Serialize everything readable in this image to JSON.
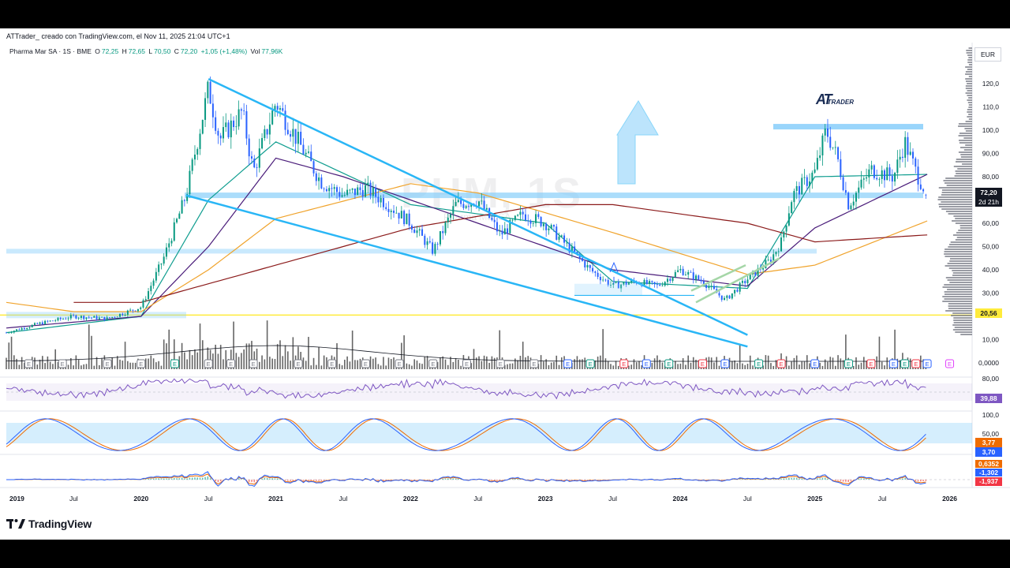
{
  "header": {
    "credit": "ATTrader_ creado con TradingView.com, el Nov 11, 2025 21:04 UTC+1"
  },
  "legend": {
    "symbol": "Pharma Mar SA · 1S · BME",
    "open_label": "O",
    "open": "72,25",
    "high_label": "H",
    "high": "72,65",
    "low_label": "L",
    "low": "70,50",
    "close_label": "C",
    "close": "72,20",
    "change": "+1,05 (+1,48%)",
    "vol_label": "Vol",
    "vol": "77,96K"
  },
  "watermark": {
    "symbol": "PHM, 1S",
    "name": "Pharma Mar SA"
  },
  "brand": {
    "logo_main": "AT",
    "logo_sub": "TRADER",
    "tradingview": "TradingView"
  },
  "price_axis": {
    "currency": "EUR",
    "ticks": [
      "120,0",
      "110,0",
      "100,0",
      "90,00",
      "80,00",
      "70,00",
      "60,00",
      "50,00",
      "40,00",
      "30,00",
      "20,00",
      "10,00",
      "0,0000"
    ],
    "current_price": "72,20",
    "countdown": "2d 21h",
    "support_label": "20,56"
  },
  "rsi_axis": {
    "ticks": [
      "80,00"
    ],
    "value": "39,88"
  },
  "stoch_axis": {
    "ticks": [
      "100,0",
      "50,00"
    ],
    "k": "3,77",
    "d": "3,70"
  },
  "macd_axis": {
    "values": [
      "0,6352",
      "-1,302",
      "-1,937"
    ]
  },
  "time_axis": {
    "labels": [
      "2019",
      "Jul",
      "2020",
      "Jul",
      "2021",
      "Jul",
      "2022",
      "Jul",
      "2023",
      "Jul",
      "2024",
      "Jul",
      "2025",
      "Jul",
      "2026"
    ]
  },
  "colors": {
    "up": "#089981",
    "down": "#2962ff",
    "trendline": "#29b6f6",
    "zone": "#87cefa",
    "ema_fast": "#0f9d8f",
    "ema_mid": "#4a1c7a",
    "ema_slow": "#f0a32b",
    "ema_long": "#8b1a1a",
    "support": "#ffeb3b",
    "rsi": "#7e57c2",
    "stoch_k": "#2962ff",
    "stoch_d": "#ef6c00",
    "earnings_green": "#089981",
    "earnings_red": "#f23645",
    "earnings_blue": "#2962ff"
  },
  "chart_data": {
    "type": "candlestick",
    "symbol": "Pharma Mar SA",
    "interval": "1S",
    "exchange": "BME",
    "currency": "EUR",
    "x_range": [
      "2019-01",
      "2026-03"
    ],
    "ylim": [
      0,
      130
    ],
    "price_path": [
      [
        "2019-01",
        13
      ],
      [
        "2019-04",
        17
      ],
      [
        "2019-07",
        20
      ],
      [
        "2019-10",
        19
      ],
      [
        "2020-01",
        24
      ],
      [
        "2020-03",
        45
      ],
      [
        "2020-05",
        72
      ],
      [
        "2020-07",
        118
      ],
      [
        "2020-08",
        96
      ],
      [
        "2020-10",
        108
      ],
      [
        "2020-11",
        82
      ],
      [
        "2021-01",
        112
      ],
      [
        "2021-03",
        95
      ],
      [
        "2021-05",
        78
      ],
      [
        "2021-07",
        72
      ],
      [
        "2021-09",
        75
      ],
      [
        "2021-11",
        68
      ],
      [
        "2022-01",
        60
      ],
      [
        "2022-03",
        48
      ],
      [
        "2022-05",
        68
      ],
      [
        "2022-07",
        70
      ],
      [
        "2022-09",
        55
      ],
      [
        "2022-11",
        64
      ],
      [
        "2023-01",
        60
      ],
      [
        "2023-03",
        50
      ],
      [
        "2023-05",
        40
      ],
      [
        "2023-07",
        33
      ],
      [
        "2023-09",
        35
      ],
      [
        "2023-11",
        33
      ],
      [
        "2024-01",
        40
      ],
      [
        "2024-03",
        35
      ],
      [
        "2024-05",
        27
      ],
      [
        "2024-07",
        36
      ],
      [
        "2024-09",
        44
      ],
      [
        "2024-10",
        52
      ],
      [
        "2024-11",
        72
      ],
      [
        "2025-01",
        82
      ],
      [
        "2025-02",
        100
      ],
      [
        "2025-03",
        88
      ],
      [
        "2025-04",
        68
      ],
      [
        "2025-06",
        83
      ],
      [
        "2025-08",
        80
      ],
      [
        "2025-09",
        95
      ],
      [
        "2025-10",
        82
      ],
      [
        "2025-11",
        72.2
      ]
    ],
    "last_bar": {
      "open": 72.25,
      "high": 72.65,
      "low": 70.5,
      "close": 72.2,
      "change": 1.05,
      "change_pct": 1.48,
      "volume": "77,96K"
    },
    "moving_averages": [
      {
        "path": [
          [
            "2019-01",
            13
          ],
          [
            "2020-01",
            20
          ],
          [
            "2020-07",
            70
          ],
          [
            "2021-01",
            95
          ],
          [
            "2022-01",
            68
          ],
          [
            "2023-01",
            60
          ],
          [
            "2023-07",
            35
          ],
          [
            "2024-07",
            32
          ],
          [
            "2025-01",
            80
          ],
          [
            "2025-11",
            81
          ]
        ]
      },
      {
        "path": [
          [
            "2019-01",
            15
          ],
          [
            "2020-01",
            20
          ],
          [
            "2020-07",
            50
          ],
          [
            "2021-01",
            88
          ],
          [
            "2021-07",
            80
          ],
          [
            "2022-07",
            60
          ],
          [
            "2023-07",
            40
          ],
          [
            "2024-07",
            33
          ],
          [
            "2025-01",
            58
          ],
          [
            "2025-11",
            81
          ]
        ]
      },
      {
        "path": [
          [
            "2019-01",
            26
          ],
          [
            "2019-07",
            22
          ],
          [
            "2020-01",
            22
          ],
          [
            "2020-07",
            40
          ],
          [
            "2021-01",
            62
          ],
          [
            "2022-01",
            77
          ],
          [
            "2022-07",
            73
          ],
          [
            "2023-07",
            56
          ],
          [
            "2024-07",
            38
          ],
          [
            "2025-01",
            42
          ],
          [
            "2025-11",
            61
          ]
        ]
      },
      {
        "path": [
          [
            "2019-07",
            26
          ],
          [
            "2020-01",
            26
          ],
          [
            "2020-07",
            34
          ],
          [
            "2021-01",
            42
          ],
          [
            "2022-01",
            58
          ],
          [
            "2022-07",
            63
          ],
          [
            "2023-01",
            68
          ],
          [
            "2023-07",
            68
          ],
          [
            "2024-07",
            60
          ],
          [
            "2025-01",
            52
          ],
          [
            "2025-11",
            55
          ]
        ]
      }
    ],
    "support_level": 20.56,
    "resistance_zones": [
      {
        "level": 101.5
      },
      {
        "level": 72
      },
      {
        "level": 48
      }
    ],
    "rsi": {
      "last": 39.88
    },
    "stochastic": {
      "k": 3.77,
      "d": 3.7
    },
    "macd": {
      "values": [
        0.6352,
        -1.302,
        -1.937
      ]
    }
  }
}
